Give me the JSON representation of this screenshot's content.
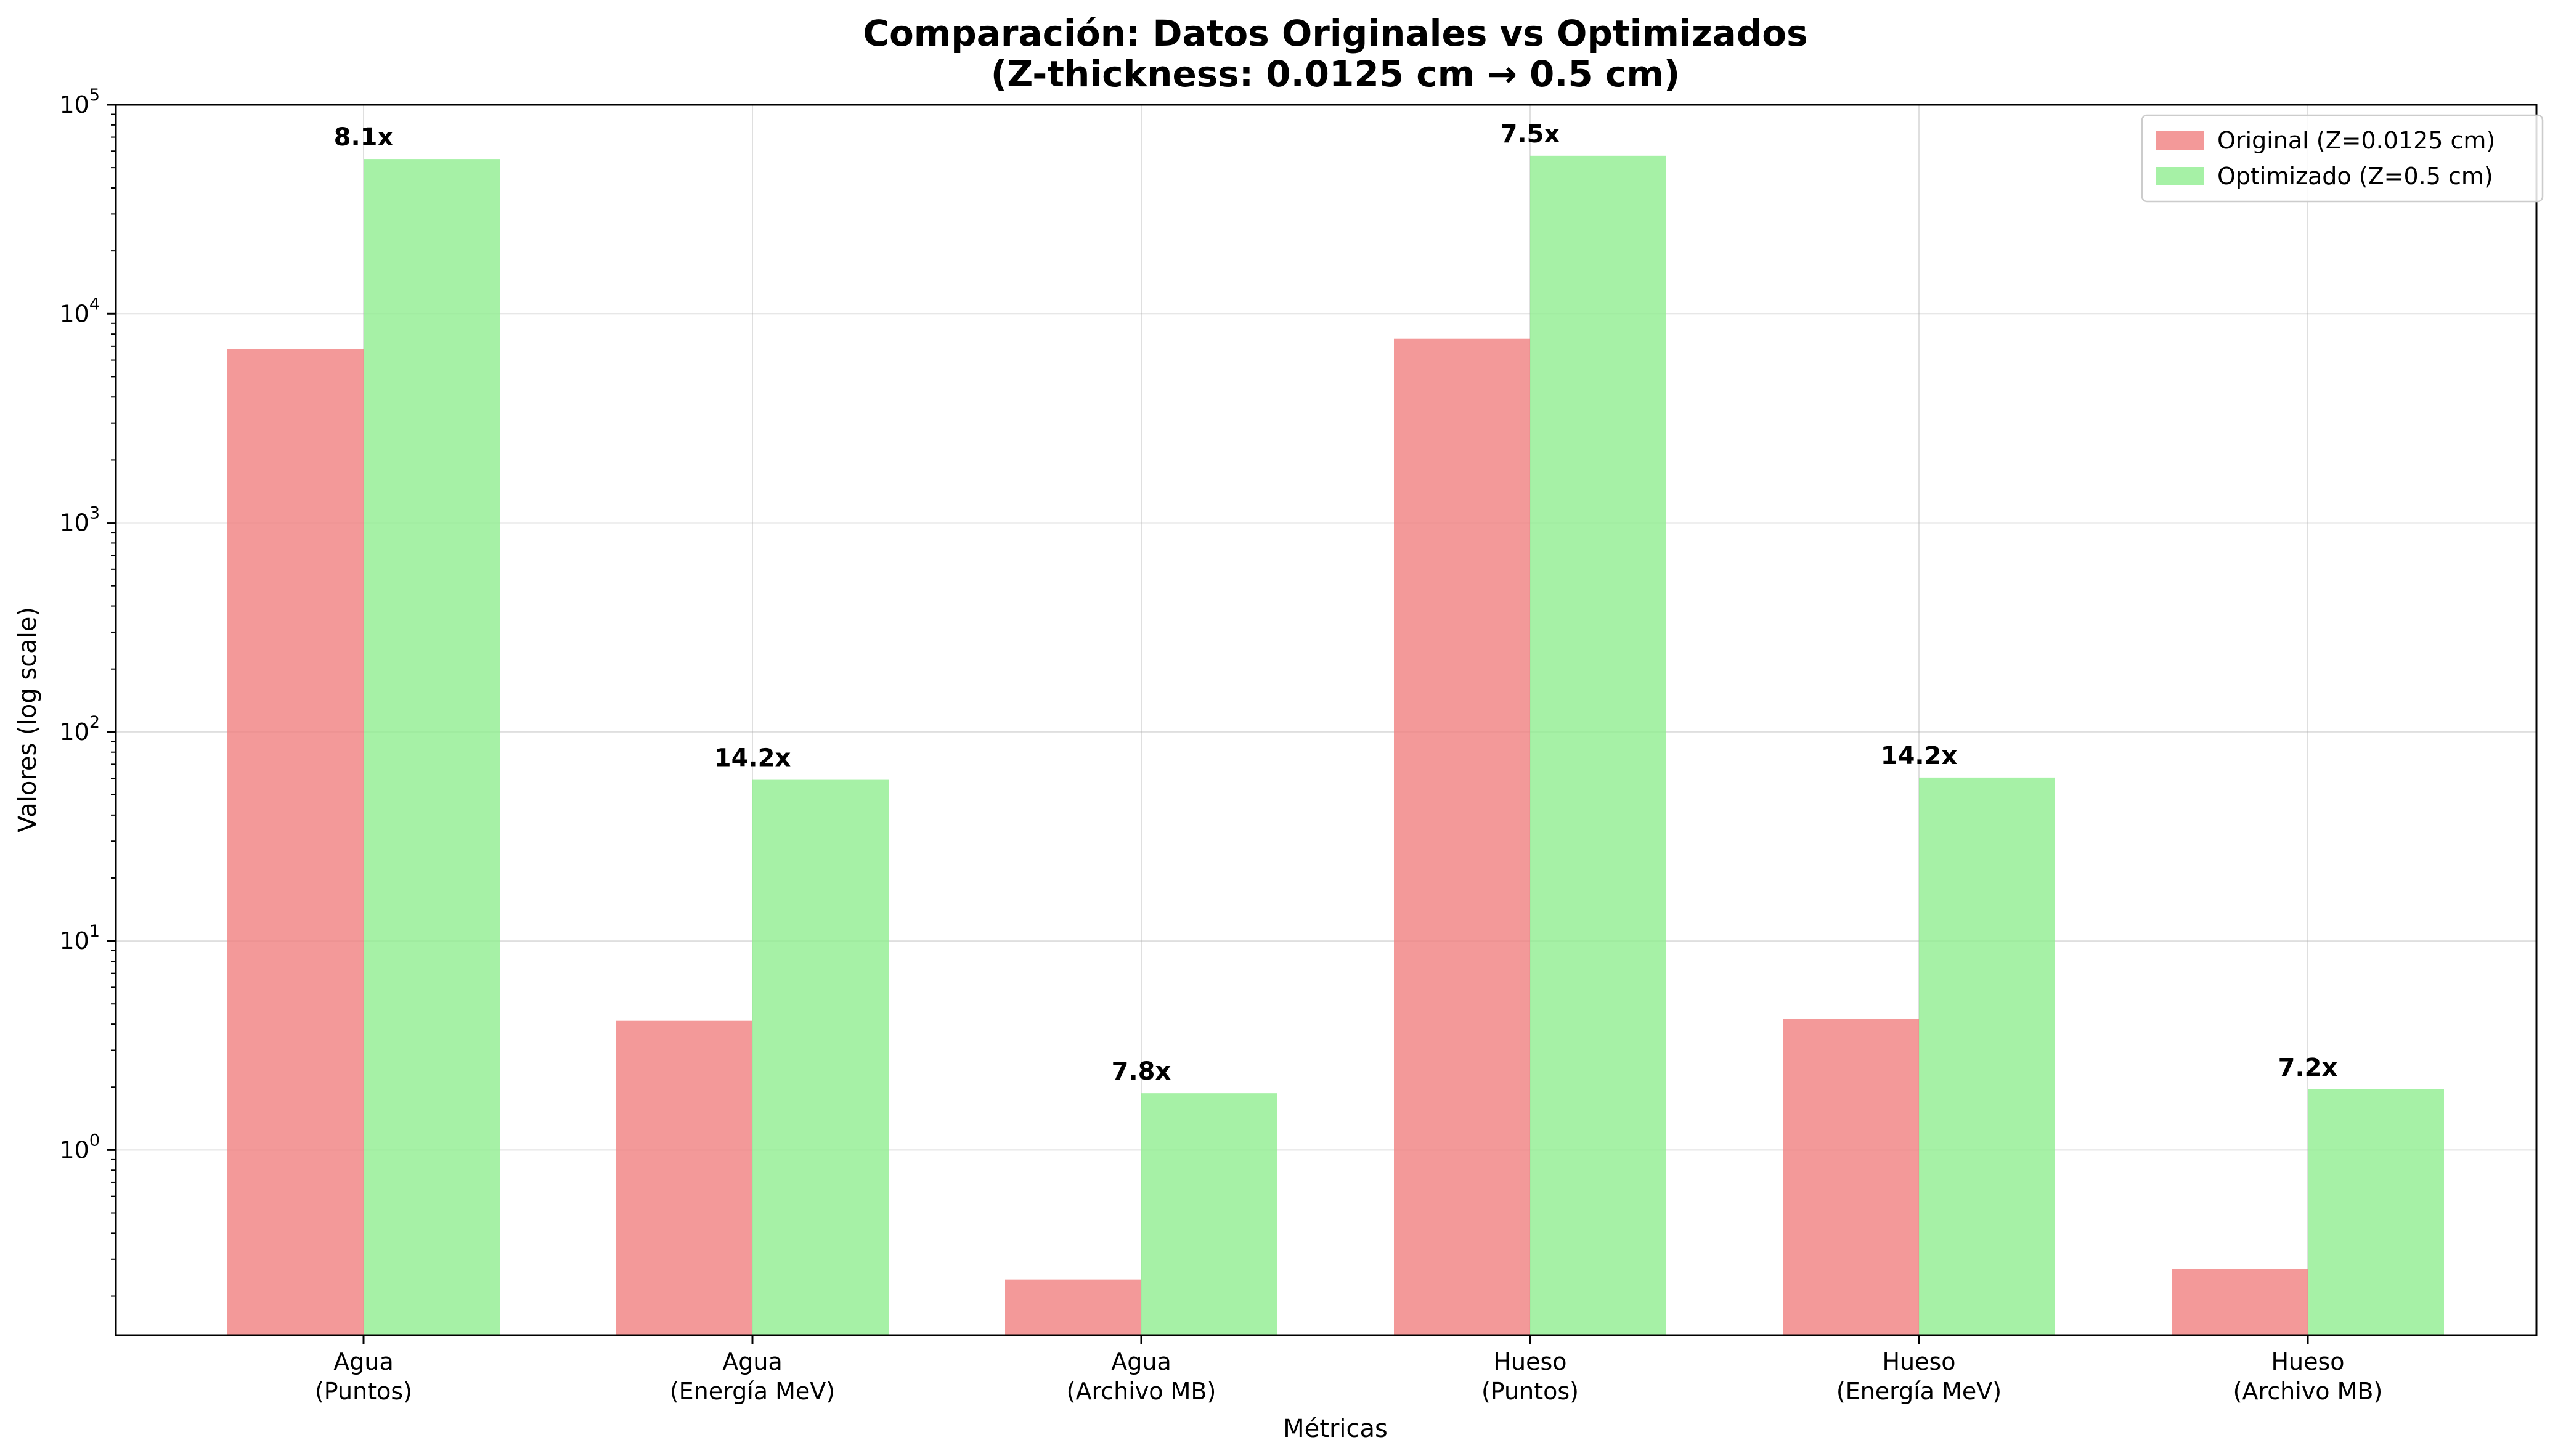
{
  "chart_data": {
    "type": "bar",
    "title_line1": "Comparación: Datos Originales vs Optimizados",
    "title_line2": "(Z-thickness: 0.0125 cm → 0.5 cm)",
    "xlabel": "Métricas",
    "ylabel": "Valores (log scale)",
    "yscale": "log",
    "ylim": [
      0.13,
      100000
    ],
    "grid": true,
    "legend_position": "top-right",
    "categories": [
      [
        "Agua",
        "(Puntos)"
      ],
      [
        "Agua",
        "(Energía MeV)"
      ],
      [
        "Agua",
        "(Archivo MB)"
      ],
      [
        "Hueso",
        "(Puntos)"
      ],
      [
        "Hueso",
        "(Energía MeV)"
      ],
      [
        "Hueso",
        "(Archivo MB)"
      ]
    ],
    "yticks": [
      {
        "base": "10",
        "exp": "0"
      },
      {
        "base": "10",
        "exp": "1"
      },
      {
        "base": "10",
        "exp": "2"
      },
      {
        "base": "10",
        "exp": "3"
      },
      {
        "base": "10",
        "exp": "4"
      },
      {
        "base": "10",
        "exp": "5"
      }
    ],
    "series": [
      {
        "name": "Original (Z=0.0125 cm)",
        "color": "#f08080",
        "values": [
          6800,
          4.15,
          0.24,
          7600,
          4.25,
          0.27
        ]
      },
      {
        "name": "Optimizado (Z=0.5 cm)",
        "color": "#90ee90",
        "values": [
          55000,
          59,
          1.87,
          57000,
          60.5,
          1.95
        ]
      }
    ],
    "ratio_labels": [
      "8.1x",
      "14.2x",
      "7.8x",
      "7.5x",
      "14.2x",
      "7.2x"
    ]
  }
}
